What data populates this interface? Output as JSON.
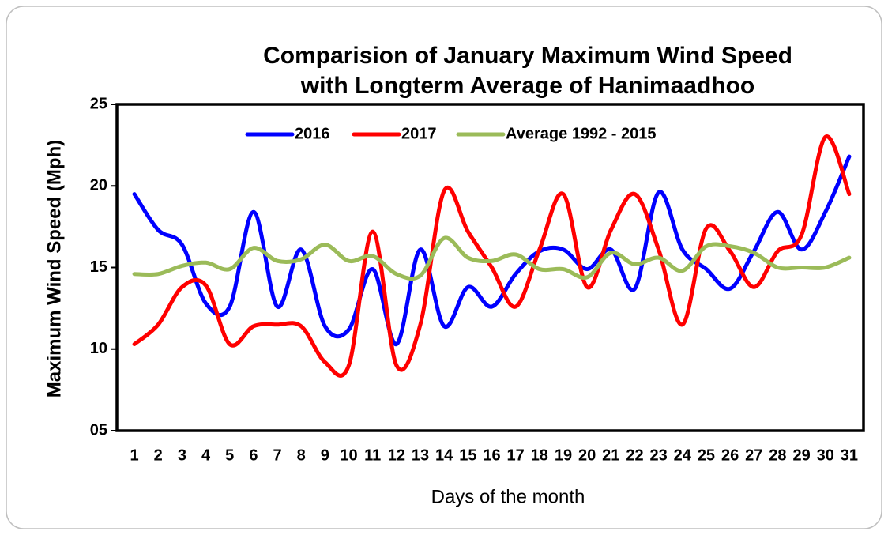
{
  "chart_data": {
    "type": "line",
    "title": [
      "Comparision of January Maximum Wind Speed",
      "with Longterm Average of Hanimaadhoo"
    ],
    "x_label": "Days of the month",
    "y_label": "Maximum Wind Speed (Mph)",
    "categories": [
      "1",
      "2",
      "3",
      "4",
      "5",
      "6",
      "7",
      "8",
      "9",
      "10",
      "11",
      "12",
      "13",
      "14",
      "15",
      "16",
      "17",
      "18",
      "19",
      "20",
      "21",
      "22",
      "23",
      "24",
      "25",
      "26",
      "27",
      "28",
      "29",
      "30",
      "31"
    ],
    "series": [
      {
        "name": "2016",
        "color": "#0000ff",
        "values": [
          19.5,
          17.3,
          16.4,
          12.8,
          12.6,
          18.4,
          12.6,
          16.1,
          11.4,
          11.2,
          14.9,
          10.3,
          16.1,
          11.4,
          13.8,
          12.6,
          14.6,
          16.0,
          16.1,
          14.9,
          16.1,
          13.7,
          19.6,
          16.1,
          14.9,
          13.7,
          16.0,
          18.4,
          16.1,
          18.4,
          21.8
        ]
      },
      {
        "name": "2017",
        "color": "#ff0000",
        "values": [
          10.3,
          11.5,
          13.8,
          13.9,
          10.3,
          11.4,
          11.5,
          11.4,
          9.2,
          9.0,
          17.2,
          9.0,
          11.5,
          19.7,
          17.2,
          15.0,
          12.6,
          16.1,
          19.5,
          13.8,
          17.3,
          19.5,
          16.1,
          11.5,
          17.4,
          16.0,
          13.8,
          16.0,
          17.0,
          23.0,
          19.5
        ]
      },
      {
        "name": "Average 1992 - 2015",
        "color": "#9bbb59",
        "values": [
          14.6,
          14.6,
          15.1,
          15.3,
          14.9,
          16.2,
          15.4,
          15.5,
          16.4,
          15.4,
          15.7,
          14.6,
          14.5,
          16.8,
          15.6,
          15.4,
          15.8,
          14.9,
          14.9,
          14.4,
          15.9,
          15.2,
          15.6,
          14.8,
          16.3,
          16.3,
          15.9,
          15.0,
          15.0,
          15.0,
          15.6
        ]
      }
    ],
    "ylim": [
      5,
      25
    ],
    "yticks": [
      {
        "value": 5,
        "label": "05"
      },
      10,
      15,
      20,
      25
    ],
    "grid": false,
    "legend": "top"
  }
}
